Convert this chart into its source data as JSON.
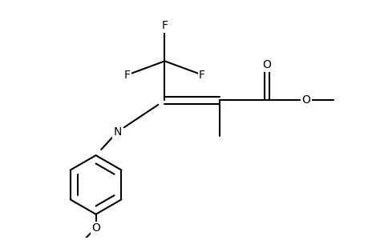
{
  "background_color": "#ffffff",
  "line_color": "#000000",
  "line_width": 1.5,
  "font_size": 10,
  "figsize": [
    4.6,
    3.0
  ],
  "dpi": 100,
  "xlim": [
    0,
    9.2
  ],
  "ylim": [
    0,
    6.0
  ]
}
